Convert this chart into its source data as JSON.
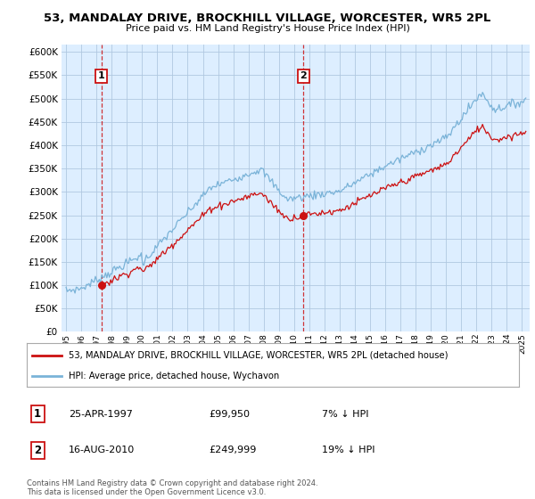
{
  "title": "53, MANDALAY DRIVE, BROCKHILL VILLAGE, WORCESTER, WR5 2PL",
  "subtitle": "Price paid vs. HM Land Registry's House Price Index (HPI)",
  "ytick_values": [
    0,
    50000,
    100000,
    150000,
    200000,
    250000,
    300000,
    350000,
    400000,
    450000,
    500000,
    550000,
    600000
  ],
  "ylim": [
    0,
    615000
  ],
  "xlim_start": 1994.7,
  "xlim_end": 2025.5,
  "hpi_color": "#7ab3d8",
  "price_color": "#cc1111",
  "purchase1_date": 1997.32,
  "purchase1_price": 99950,
  "purchase2_date": 2010.62,
  "purchase2_price": 249999,
  "legend_property": "53, MANDALAY DRIVE, BROCKHILL VILLAGE, WORCESTER, WR5 2PL (detached house)",
  "legend_hpi": "HPI: Average price, detached house, Wychavon",
  "table_row1": [
    "1",
    "25-APR-1997",
    "£99,950",
    "7% ↓ HPI"
  ],
  "table_row2": [
    "2",
    "16-AUG-2010",
    "£249,999",
    "19% ↓ HPI"
  ],
  "footer": "Contains HM Land Registry data © Crown copyright and database right 2024.\nThis data is licensed under the Open Government Licence v3.0.",
  "bg_chart": "#ddeeff",
  "bg_fig": "#ffffff",
  "grid_color": "#b0c8e0"
}
